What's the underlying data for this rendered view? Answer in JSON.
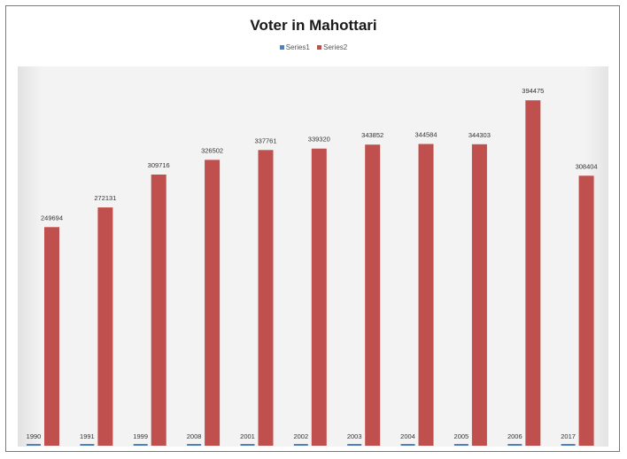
{
  "chart_data": {
    "type": "bar",
    "title": "Voter in Mahottari",
    "xlabel": "",
    "ylabel": "",
    "legend_position": "top",
    "grid": false,
    "categories": [
      "1990",
      "1991",
      "1999",
      "2008",
      "2001",
      "2002",
      "2003",
      "2004",
      "2005",
      "2006",
      "2017"
    ],
    "series": [
      {
        "name": "Series1",
        "color": "#4f81bd",
        "values": [
          1990,
          1991,
          1999,
          2008,
          2001,
          2002,
          2003,
          2004,
          2005,
          2006,
          2017
        ]
      },
      {
        "name": "Series2",
        "color": "#c0504d",
        "values": [
          249694,
          272131,
          309716,
          326502,
          337761,
          339320,
          343852,
          344584,
          344303,
          394475,
          308404
        ]
      }
    ],
    "ylim": [
      0,
      420000
    ]
  }
}
